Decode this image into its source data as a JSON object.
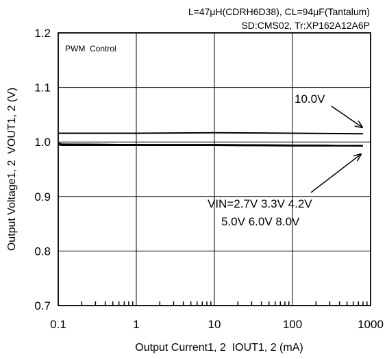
{
  "conditions": [
    "L=47μH(CDRH6D38), CL=94μF(Tantalum)",
    "SD:CMS02, Tr:XP162A12A6P"
  ],
  "mode_label": "PWM  Control",
  "annotations": {
    "high_vin": "10.0V",
    "low_vin_line1": "VIN=2.7V 3.3V 4.2V",
    "low_vin_line2": "5.0V 6.0V 8.0V"
  },
  "chart_data": {
    "type": "line",
    "xlabel": "Output Current1, 2  IOUT1, 2 (mA)",
    "ylabel": "Output Voltage1, 2  VOUT1, 2 (V)",
    "x_scale": "log",
    "xlim": [
      0.1,
      1000
    ],
    "ylim": [
      0.7,
      1.2
    ],
    "x_ticks": [
      0.1,
      1,
      10,
      100,
      1000
    ],
    "x_tick_labels": [
      "0.1",
      "1",
      "10",
      "100",
      "1000"
    ],
    "y_ticks": [
      0.7,
      0.8,
      0.9,
      1.0,
      1.1,
      1.2
    ],
    "y_tick_labels": [
      "0.7",
      "0.8",
      "0.9",
      "1.0",
      "1.1",
      "1.2"
    ],
    "grid": true,
    "series": [
      {
        "name": "10.0V",
        "x": [
          0.1,
          1,
          10,
          100,
          800
        ],
        "y": [
          1.016,
          1.016,
          1.017,
          1.016,
          1.015
        ]
      },
      {
        "name": "VIN=2.7V",
        "x": [
          0.1,
          0.11,
          1,
          10,
          100,
          800
        ],
        "y": [
          0.998,
          0.996,
          0.995,
          0.995,
          0.994,
          0.993
        ]
      },
      {
        "name": "3.3V",
        "x": [
          0.1,
          0.11,
          1,
          10,
          100,
          800
        ],
        "y": [
          0.997,
          0.996,
          0.995,
          0.995,
          0.994,
          0.993
        ]
      },
      {
        "name": "4.2V",
        "x": [
          0.1,
          0.11,
          1,
          10,
          100,
          800
        ],
        "y": [
          0.997,
          0.995,
          0.995,
          0.994,
          0.994,
          0.993
        ]
      },
      {
        "name": "5.0V",
        "x": [
          0.1,
          0.11,
          1,
          10,
          100,
          800
        ],
        "y": [
          0.996,
          0.995,
          0.994,
          0.994,
          0.994,
          0.993
        ]
      },
      {
        "name": "6.0V",
        "x": [
          0.1,
          0.11,
          1,
          10,
          100,
          800
        ],
        "y": [
          0.996,
          0.995,
          0.994,
          0.994,
          0.993,
          0.993
        ]
      },
      {
        "name": "8.0V",
        "x": [
          0.1,
          0.11,
          1,
          10,
          100,
          800
        ],
        "y": [
          0.995,
          0.994,
          0.994,
          0.994,
          0.993,
          0.993
        ]
      }
    ]
  }
}
